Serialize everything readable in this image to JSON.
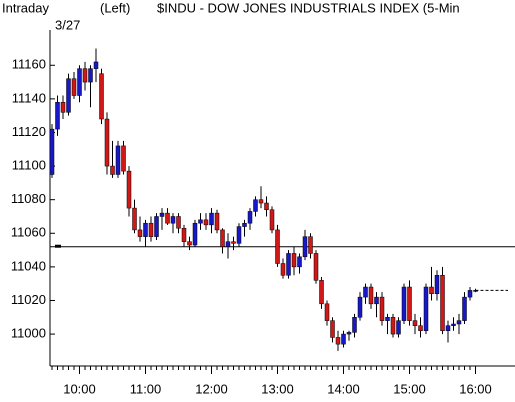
{
  "chart_data": {
    "type": "candlestick",
    "title": "$INDU - DOW JONES INDUSTRIALS INDEX  (5-Min",
    "period_label": "Intraday",
    "axis_side_label": "(Left)",
    "date_label": "3/27",
    "categories": [
      null,
      null,
      null,
      null,
      null,
      "10:00",
      null,
      null,
      null,
      null,
      null,
      null,
      null,
      null,
      null,
      null,
      null,
      "11:00",
      null,
      null,
      null,
      null,
      null,
      null,
      null,
      null,
      null,
      null,
      null,
      "12:00",
      null,
      null,
      null,
      null,
      null,
      null,
      null,
      null,
      null,
      null,
      null,
      "13:00",
      null,
      null,
      null,
      null,
      null,
      null,
      null,
      null,
      null,
      null,
      null,
      "14:00",
      null,
      null,
      null,
      null,
      null,
      null,
      null,
      null,
      null,
      null,
      null,
      "15:00",
      null,
      null,
      null,
      null,
      null,
      null,
      null,
      null,
      null,
      null,
      null,
      "16:00"
    ],
    "open": [
      11095,
      11122,
      11138,
      11132,
      11152,
      11142,
      11158,
      11150,
      11158,
      11155,
      11128,
      11100,
      11095,
      11112,
      11097,
      11075,
      11062,
      11058,
      11066,
      11058,
      11070,
      11072,
      11066,
      11070,
      11063,
      11055,
      11053,
      11066,
      11068,
      11065,
      11072,
      11062,
      11052,
      11055,
      11054,
      11064,
      11066,
      11073,
      11080,
      11078,
      11074,
      11062,
      11042,
      11035,
      11048,
      11040,
      11046,
      11058,
      11048,
      11032,
      11018,
      11008,
      10998,
      10994,
      11000,
      11001,
      11010,
      11022,
      11028,
      11018,
      11022,
      11008,
      11010,
      11000,
      11008,
      11028,
      11008,
      11005,
      11002,
      11028,
      11024,
      11035,
      11002,
      11005,
      11006,
      11008,
      11022,
      11026
    ],
    "high": [
      11125,
      11142,
      11142,
      11155,
      11156,
      11160,
      11162,
      11160,
      11170,
      11158,
      11132,
      11115,
      11115,
      11115,
      11100,
      11080,
      11070,
      11068,
      11070,
      11072,
      11075,
      11075,
      11072,
      11072,
      11065,
      11058,
      11068,
      11072,
      11072,
      11075,
      11074,
      11063,
      11060,
      11058,
      11066,
      11068,
      11075,
      11082,
      11088,
      11082,
      11076,
      11065,
      11045,
      11050,
      11052,
      11048,
      11062,
      11060,
      11050,
      11034,
      11020,
      11010,
      11002,
      11002,
      11002,
      11012,
      11025,
      11030,
      11030,
      11025,
      11025,
      11012,
      11012,
      11010,
      11030,
      11032,
      11012,
      11010,
      11030,
      11040,
      11038,
      11040,
      11008,
      11010,
      11012,
      11025,
      11028,
      11027
    ],
    "low": [
      11093,
      11118,
      11128,
      11130,
      11140,
      11138,
      11145,
      11135,
      11150,
      11125,
      11095,
      11093,
      11093,
      11095,
      11070,
      11060,
      11055,
      11052,
      11055,
      11056,
      11062,
      11065,
      11060,
      11060,
      11052,
      11050,
      11052,
      11062,
      11062,
      11060,
      11060,
      11048,
      11045,
      11050,
      11052,
      11058,
      11062,
      11070,
      11075,
      11070,
      11060,
      11040,
      11033,
      11033,
      11035,
      11036,
      11044,
      11045,
      11030,
      11015,
      11005,
      10995,
      10990,
      10992,
      10996,
      10998,
      11008,
      11018,
      11015,
      11010,
      11005,
      11000,
      10998,
      10998,
      11006,
      11005,
      11000,
      10998,
      11000,
      11020,
      11020,
      11000,
      10995,
      11002,
      11000,
      11006,
      11020,
      11025
    ],
    "close": [
      11122,
      11138,
      11132,
      11152,
      11142,
      11158,
      11150,
      11158,
      11162,
      11128,
      11100,
      11095,
      11112,
      11097,
      11075,
      11062,
      11058,
      11066,
      11058,
      11070,
      11072,
      11066,
      11070,
      11063,
      11055,
      11053,
      11066,
      11068,
      11065,
      11072,
      11062,
      11052,
      11055,
      11054,
      11064,
      11066,
      11073,
      11080,
      11078,
      11074,
      11062,
      11042,
      11035,
      11048,
      11040,
      11046,
      11058,
      11048,
      11032,
      11018,
      11008,
      10998,
      10994,
      11000,
      11001,
      11010,
      11022,
      11028,
      11018,
      11022,
      11008,
      11010,
      11000,
      11008,
      11028,
      11008,
      11005,
      11002,
      11028,
      11024,
      11035,
      11002,
      11005,
      11006,
      11008,
      11022,
      11026,
      11026
    ],
    "up_color": "#1818c8",
    "down_color": "#d01818",
    "reference_line": 11052,
    "ylim": [
      10981,
      11181
    ],
    "yticks": [
      11000,
      11020,
      11040,
      11060,
      11080,
      11100,
      11120,
      11140,
      11160
    ]
  }
}
